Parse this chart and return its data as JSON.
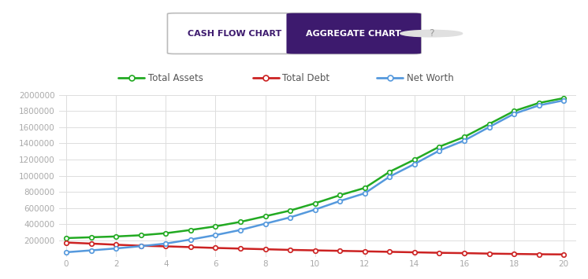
{
  "x": [
    0,
    1,
    2,
    3,
    4,
    5,
    6,
    7,
    8,
    9,
    10,
    11,
    12,
    13,
    14,
    15,
    16,
    17,
    18,
    19,
    20
  ],
  "total_assets": [
    230000,
    240000,
    250000,
    265000,
    290000,
    330000,
    375000,
    430000,
    500000,
    570000,
    660000,
    760000,
    850000,
    1050000,
    1200000,
    1360000,
    1480000,
    1640000,
    1800000,
    1900000,
    1960000
  ],
  "total_debt": [
    175000,
    162000,
    148000,
    135000,
    128000,
    118000,
    108000,
    100000,
    92000,
    84000,
    78000,
    72000,
    66000,
    60000,
    54000,
    48000,
    44000,
    38000,
    34000,
    30000,
    28000
  ],
  "net_worth": [
    55000,
    78000,
    102000,
    130000,
    162000,
    212000,
    267000,
    330000,
    408000,
    486000,
    582000,
    688000,
    784000,
    990000,
    1146000,
    1312000,
    1436000,
    1602000,
    1766000,
    1870000,
    1932000
  ],
  "color_assets": "#22aa22",
  "color_debt": "#cc2222",
  "color_networth": "#5599dd",
  "bg_color": "#ffffff",
  "grid_color": "#dddddd",
  "axis_label_color": "#aaaaaa",
  "ylim": [
    0,
    2000000
  ],
  "yticks": [
    0,
    200000,
    400000,
    600000,
    800000,
    1000000,
    1200000,
    1400000,
    1600000,
    1800000,
    2000000
  ],
  "xticks": [
    0,
    2,
    4,
    6,
    8,
    10,
    12,
    14,
    16,
    18,
    20
  ],
  "xlim": [
    -0.3,
    20.5
  ],
  "legend_labels": [
    "Total Assets",
    "Total Debt",
    "Net Worth"
  ],
  "title_left": "CASH FLOW CHART",
  "title_right": "AGGREGATE CHART",
  "title_bg_left": "#ffffff",
  "title_bg_right": "#3d1a6e",
  "title_text_left": "#3d1a6e",
  "title_text_right": "#ffffff",
  "marker_size": 4,
  "line_width": 1.8
}
